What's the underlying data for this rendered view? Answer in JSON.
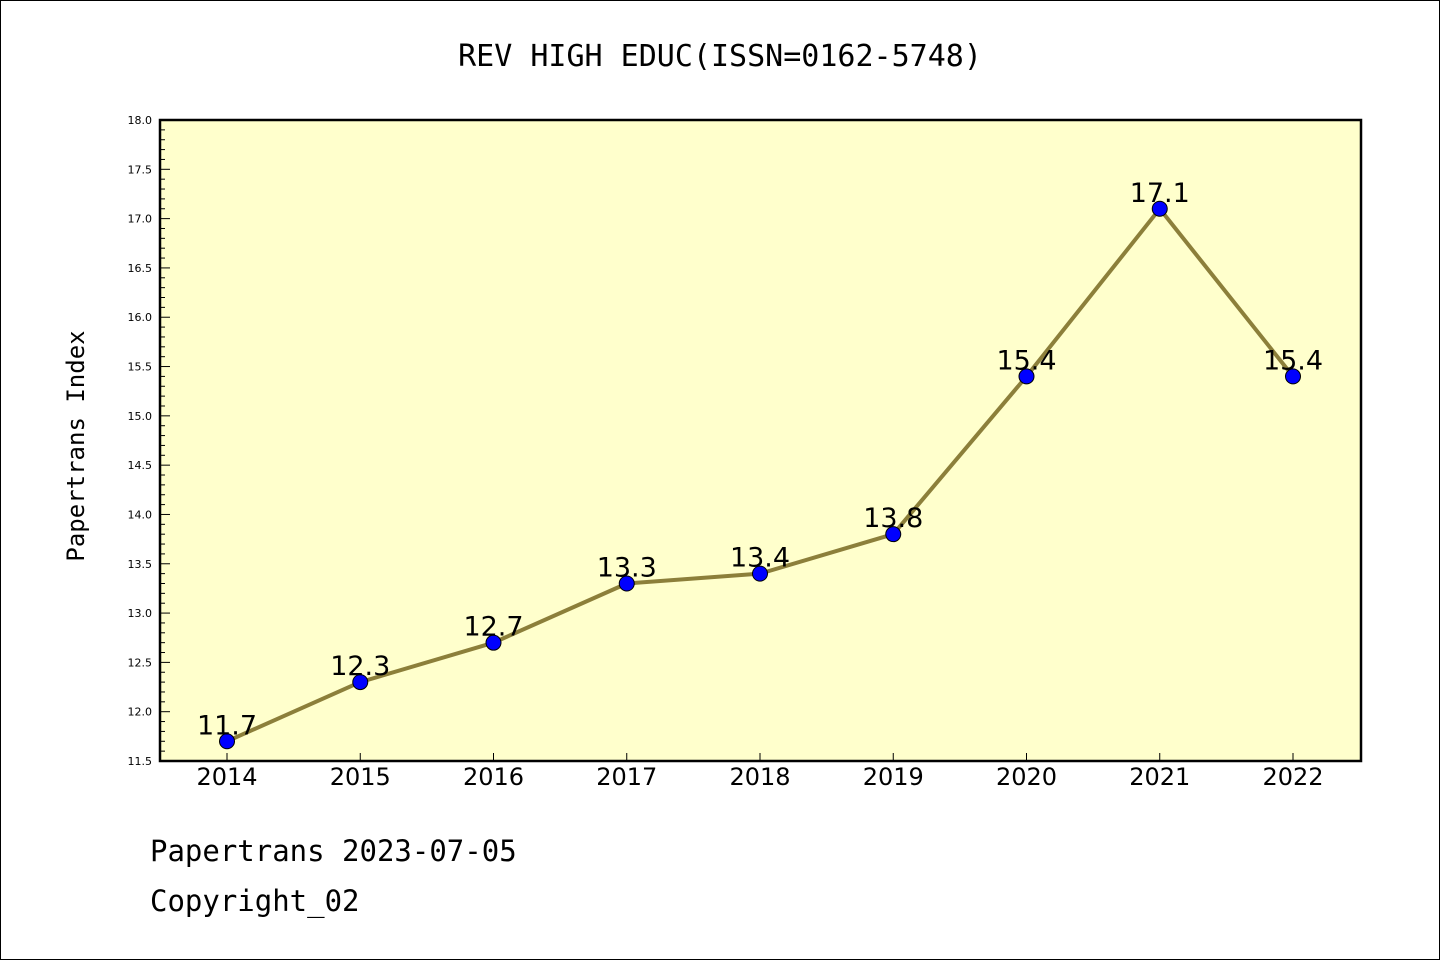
{
  "chart_data": {
    "type": "line",
    "title": "REV HIGH EDUC(ISSN=0162-5748)",
    "xlabel": "",
    "ylabel": "Papertrans Index",
    "categories": [
      "2014",
      "2015",
      "2016",
      "2017",
      "2018",
      "2019",
      "2020",
      "2021",
      "2022"
    ],
    "values": [
      11.7,
      12.3,
      12.7,
      13.3,
      13.4,
      13.8,
      15.4,
      17.1,
      15.4
    ],
    "data_labels": [
      "11.7",
      "12.3",
      "12.7",
      "13.3",
      "13.4",
      "13.8",
      "15.4",
      "17.1",
      "15.4"
    ],
    "ylim": [
      11.5,
      18.0
    ],
    "yticks": [
      "11.5",
      "12.0",
      "12.5",
      "13.0",
      "13.5",
      "14.0",
      "14.5",
      "15.0",
      "15.5",
      "16.0",
      "16.5",
      "17.0",
      "17.5",
      "18.0"
    ],
    "grid": false,
    "colors": {
      "plot_background": "#ffffcc",
      "line": "#8c7f3a",
      "marker": "#0000ff"
    }
  },
  "footer": {
    "line1": "Papertrans 2023-07-05",
    "line2": "Copyright_02"
  }
}
